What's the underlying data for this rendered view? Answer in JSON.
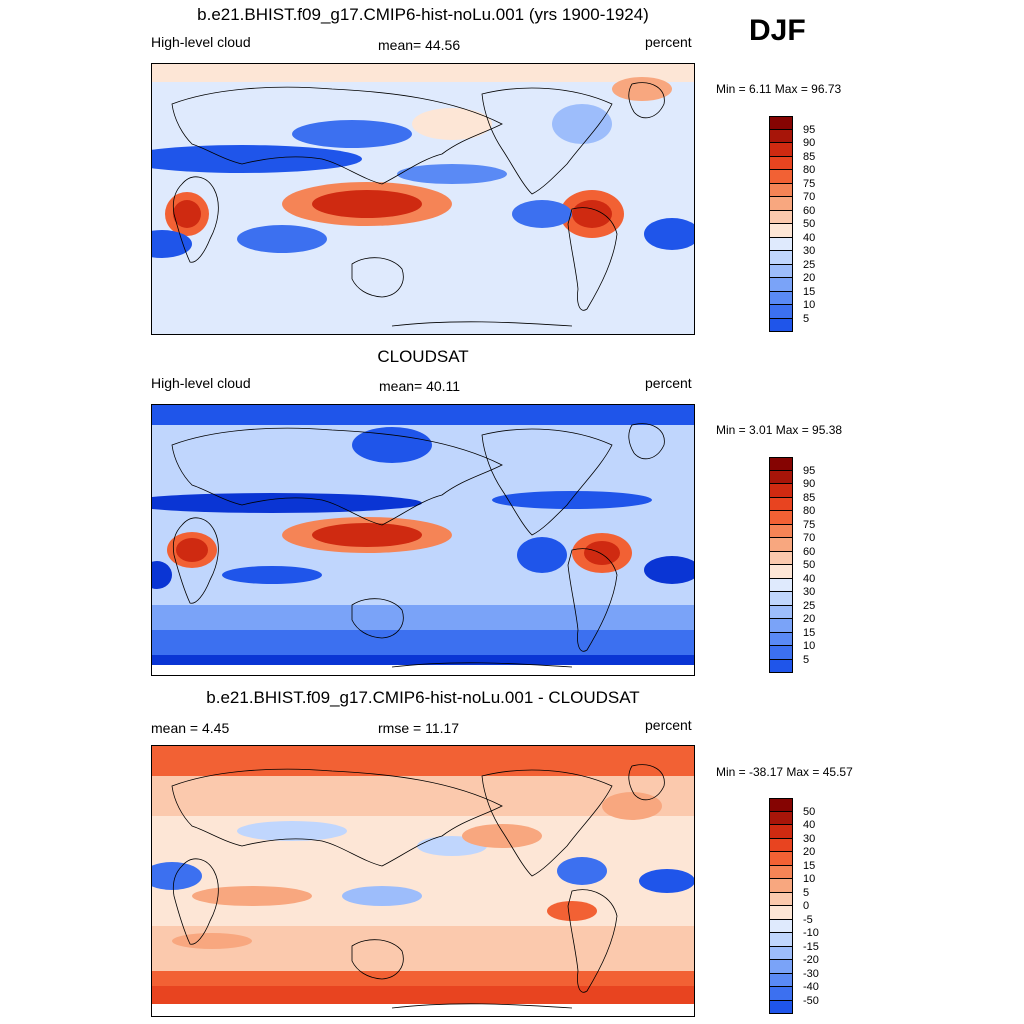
{
  "season": "DJF",
  "palettes": {
    "abs": [
      "#1a0b82",
      "#0d1fa6",
      "#0a35d4",
      "#1f55ea",
      "#3c70f0",
      "#5a8af5",
      "#7aa3f8",
      "#9dbdfb",
      "#c0d6fd",
      "#dfeafd",
      "#fde6d6",
      "#fbc9ad",
      "#f8a77f",
      "#f58456",
      "#f26134",
      "#e84420",
      "#cf2a11",
      "#a71509",
      "#850402"
    ],
    "diff": [
      "#1a0b82",
      "#0d1fa6",
      "#0a35d4",
      "#1f55ea",
      "#3c70f0",
      "#5a8af5",
      "#7aa3f8",
      "#9dbdfb",
      "#c0d6fd",
      "#dfeafd",
      "#fde6d6",
      "#fbc9ad",
      "#f8a77f",
      "#f58456",
      "#f26134",
      "#e84420",
      "#cf2a11",
      "#a71509",
      "#850402"
    ]
  },
  "panels": [
    {
      "title": "b.e21.BHIST.f09_g17.CMIP6-hist-noLu.001 (yrs 1900-1924)",
      "left_label": "High-level cloud",
      "center_label": "mean=  44.56",
      "right_label": "percent",
      "minmax": "Min =   6.11 Max =  96.73",
      "map_name": "model-map",
      "colorbar": {
        "palette": "abs",
        "labels": [
          "95",
          "90",
          "85",
          "80",
          "75",
          "70",
          "60",
          "50",
          "40",
          "30",
          "25",
          "20",
          "15",
          "10",
          "5"
        ]
      }
    },
    {
      "title": "CLOUDSAT",
      "left_label": "High-level cloud",
      "center_label": "mean=  40.11",
      "right_label": "percent",
      "minmax": "Min =   3.01 Max =  95.38",
      "map_name": "observation-map",
      "colorbar": {
        "palette": "abs",
        "labels": [
          "95",
          "90",
          "85",
          "80",
          "75",
          "70",
          "60",
          "50",
          "40",
          "30",
          "25",
          "20",
          "15",
          "10",
          "5"
        ]
      }
    },
    {
      "title": "b.e21.BHIST.f09_g17.CMIP6-hist-noLu.001 - CLOUDSAT",
      "left_label": "mean =   4.45",
      "center_label": "rmse =  11.17",
      "right_label": "percent",
      "minmax": "Min = -38.17 Max =  45.57",
      "map_name": "difference-map",
      "colorbar": {
        "palette": "diff",
        "labels": [
          "50",
          "40",
          "30",
          "20",
          "15",
          "10",
          "5",
          "0",
          "-5",
          "-10",
          "-15",
          "-20",
          "-30",
          "-40",
          "-50"
        ]
      }
    }
  ]
}
